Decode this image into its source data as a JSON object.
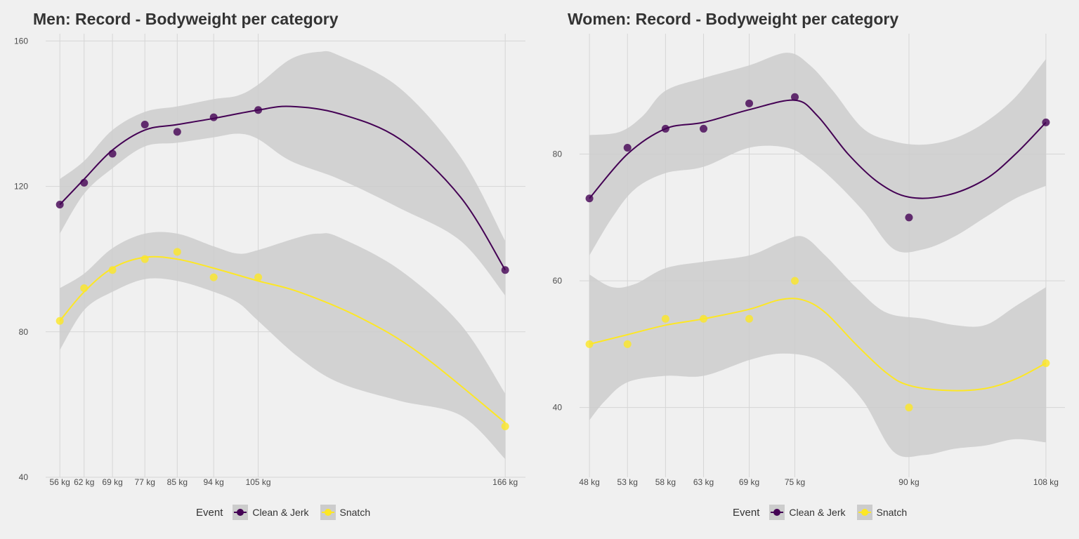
{
  "colors": {
    "clean_jerk": "#440154",
    "snatch": "#fde725",
    "ribbon": "#cccccc",
    "grid": "#d6d6d6"
  },
  "legend": {
    "title": "Event",
    "items": [
      "Clean & Jerk",
      "Snatch"
    ]
  },
  "chart_data": [
    {
      "type": "scatter",
      "title": "Men: Record - Bodyweight per category",
      "xlabel": "",
      "ylabel": "",
      "x_tick_labels": [
        "56 kg",
        "62 kg",
        "69 kg",
        "77 kg",
        "85 kg",
        "94 kg",
        "105 kg",
        "166 kg"
      ],
      "x_values": [
        56,
        62,
        69,
        77,
        85,
        94,
        105,
        166
      ],
      "xlim": [
        52.5,
        171
      ],
      "ylim": [
        40,
        162
      ],
      "y_ticks": [
        40,
        80,
        120,
        160
      ],
      "grid": true,
      "legend_position": "bottom",
      "series": [
        {
          "name": "Clean & Jerk",
          "values": [
            115,
            121,
            129,
            137,
            135,
            139,
            141,
            97
          ],
          "smooth": [
            [
              56,
              115
            ],
            [
              62,
              122
            ],
            [
              69,
              130
            ],
            [
              77,
              135.5
            ],
            [
              85,
              137
            ],
            [
              94,
              138.7
            ],
            [
              105,
              141
            ],
            [
              113,
              142
            ],
            [
              125,
              140
            ],
            [
              140,
              133
            ],
            [
              155,
              117
            ],
            [
              166,
              97
            ]
          ],
          "band_upper": [
            [
              56,
              122
            ],
            [
              62,
              127
            ],
            [
              69,
              135.5
            ],
            [
              77,
              140.5
            ],
            [
              85,
              142
            ],
            [
              94,
              144
            ],
            [
              100,
              145
            ],
            [
              105,
              148
            ],
            [
              113,
              155
            ],
            [
              120,
              157
            ],
            [
              125,
              156
            ],
            [
              140,
              147
            ],
            [
              155,
              128
            ],
            [
              166,
              105
            ]
          ],
          "band_lower": [
            [
              56,
              107
            ],
            [
              62,
              118
            ],
            [
              69,
              125
            ],
            [
              77,
              131
            ],
            [
              85,
              132
            ],
            [
              94,
              133.5
            ],
            [
              100,
              134.5
            ],
            [
              105,
              133
            ],
            [
              113,
              127
            ],
            [
              125,
              122
            ],
            [
              140,
              114
            ],
            [
              155,
              105
            ],
            [
              166,
              90
            ]
          ]
        },
        {
          "name": "Snatch",
          "values": [
            83,
            92,
            97,
            100,
            102,
            95,
            95,
            54
          ],
          "smooth": [
            [
              56,
              83
            ],
            [
              62,
              91
            ],
            [
              69,
              97.5
            ],
            [
              77,
              100.5
            ],
            [
              85,
              100
            ],
            [
              94,
              97.5
            ],
            [
              105,
              94
            ],
            [
              115,
              91
            ],
            [
              130,
              84
            ],
            [
              145,
              74
            ],
            [
              166,
              55
            ]
          ],
          "band_upper": [
            [
              56,
              92
            ],
            [
              62,
              96
            ],
            [
              69,
              103
            ],
            [
              77,
              107
            ],
            [
              85,
              107
            ],
            [
              94,
              103.5
            ],
            [
              100,
              101.5
            ],
            [
              105,
              102.5
            ],
            [
              115,
              106
            ],
            [
              120,
              107
            ],
            [
              125,
              106
            ],
            [
              140,
              97
            ],
            [
              155,
              82
            ],
            [
              166,
              63
            ]
          ],
          "band_lower": [
            [
              56,
              75
            ],
            [
              62,
              86
            ],
            [
              69,
              91
            ],
            [
              77,
              94.5
            ],
            [
              85,
              94
            ],
            [
              94,
              91
            ],
            [
              100,
              88
            ],
            [
              105,
              83
            ],
            [
              115,
              73
            ],
            [
              125,
              66
            ],
            [
              140,
              61
            ],
            [
              155,
              57
            ],
            [
              166,
              45
            ]
          ]
        }
      ]
    },
    {
      "type": "scatter",
      "title": "Women: Record - Bodyweight per category",
      "xlabel": "",
      "ylabel": "",
      "x_tick_labels": [
        "48 kg",
        "53 kg",
        "58 kg",
        "63 kg",
        "69 kg",
        "75 kg",
        "90 kg",
        "108 kg"
      ],
      "x_values": [
        48,
        53,
        58,
        63,
        69,
        75,
        90,
        108
      ],
      "xlim": [
        46.7,
        110.5
      ],
      "ylim": [
        29,
        99
      ],
      "y_ticks": [
        40,
        60,
        80
      ],
      "grid": true,
      "legend_position": "bottom",
      "series": [
        {
          "name": "Clean & Jerk",
          "values": [
            73,
            81,
            84,
            84,
            88,
            89,
            70,
            85
          ],
          "smooth": [
            [
              48,
              73
            ],
            [
              53,
              80
            ],
            [
              58,
              84
            ],
            [
              63,
              85
            ],
            [
              69,
              87
            ],
            [
              75,
              88.5
            ],
            [
              78,
              86
            ],
            [
              82,
              80
            ],
            [
              86,
              75.5
            ],
            [
              90,
              73.2
            ],
            [
              95,
              73.5
            ],
            [
              100,
              76
            ],
            [
              104,
              80
            ],
            [
              108,
              85
            ]
          ],
          "band_upper": [
            [
              48,
              83
            ],
            [
              52,
              83.5
            ],
            [
              55,
              86
            ],
            [
              58,
              90
            ],
            [
              63,
              92
            ],
            [
              69,
              94
            ],
            [
              74,
              96
            ],
            [
              77,
              94
            ],
            [
              80,
              90
            ],
            [
              84,
              84
            ],
            [
              88,
              82
            ],
            [
              92,
              81.5
            ],
            [
              96,
              82.5
            ],
            [
              100,
              85
            ],
            [
              104,
              89
            ],
            [
              108,
              95
            ]
          ],
          "band_lower": [
            [
              48,
              64
            ],
            [
              51,
              70
            ],
            [
              54,
              74.5
            ],
            [
              58,
              77
            ],
            [
              63,
              78
            ],
            [
              69,
              81
            ],
            [
              74,
              81
            ],
            [
              77,
              79
            ],
            [
              80,
              76
            ],
            [
              84,
              71
            ],
            [
              88,
              65
            ],
            [
              92,
              65
            ],
            [
              96,
              67
            ],
            [
              100,
              70
            ],
            [
              104,
              73
            ],
            [
              108,
              75
            ]
          ]
        },
        {
          "name": "Snatch",
          "values": [
            50,
            50,
            54,
            54,
            54,
            60,
            40,
            47
          ],
          "smooth": [
            [
              48,
              50
            ],
            [
              53,
              51.5
            ],
            [
              58,
              53
            ],
            [
              63,
              54
            ],
            [
              69,
              55.5
            ],
            [
              73,
              57
            ],
            [
              76,
              57
            ],
            [
              79,
              55
            ],
            [
              83,
              50
            ],
            [
              87,
              45.5
            ],
            [
              90,
              43.5
            ],
            [
              95,
              42.7
            ],
            [
              100,
              43
            ],
            [
              104,
              44.5
            ],
            [
              108,
              47
            ]
          ],
          "band_upper": [
            [
              48,
              61
            ],
            [
              51,
              59
            ],
            [
              54,
              59.5
            ],
            [
              58,
              62
            ],
            [
              63,
              63
            ],
            [
              69,
              64
            ],
            [
              73,
              66
            ],
            [
              76,
              67
            ],
            [
              79,
              64
            ],
            [
              83,
              59
            ],
            [
              87,
              55
            ],
            [
              92,
              54
            ],
            [
              96,
              53
            ],
            [
              100,
              53
            ],
            [
              104,
              56
            ],
            [
              108,
              59
            ]
          ],
          "band_lower": [
            [
              48,
              38
            ],
            [
              50,
              41
            ],
            [
              53,
              44
            ],
            [
              58,
              45
            ],
            [
              63,
              45
            ],
            [
              69,
              47.5
            ],
            [
              73,
              48.5
            ],
            [
              77,
              48
            ],
            [
              80,
              46
            ],
            [
              84,
              41
            ],
            [
              88,
              33
            ],
            [
              92,
              32.5
            ],
            [
              96,
              33.5
            ],
            [
              100,
              34
            ],
            [
              104,
              35
            ],
            [
              108,
              34.5
            ]
          ]
        }
      ]
    }
  ]
}
